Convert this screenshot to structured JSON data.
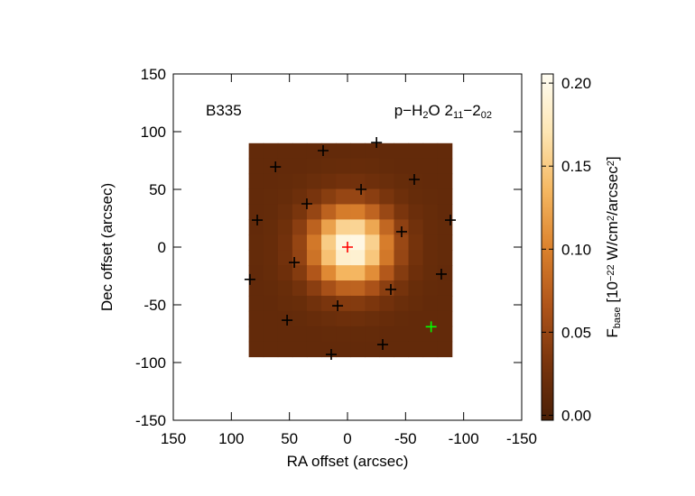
{
  "chart_data": {
    "type": "heatmap",
    "x_label": "RA offset (arcsec)",
    "y_label": "Dec offset (arcsec)",
    "xlim": [
      150,
      -150
    ],
    "ylim": [
      -150,
      150
    ],
    "xticks": [
      150,
      100,
      50,
      0,
      -50,
      -100,
      -150
    ],
    "yticks": [
      150,
      100,
      50,
      0,
      -50,
      -100,
      -150
    ],
    "annotations": [
      {
        "parts": [
          {
            "text": "B335"
          }
        ]
      },
      {
        "parts": [
          {
            "text": "p−H"
          },
          {
            "text": "2",
            "sub": true
          },
          {
            "text": "O 2"
          },
          {
            "text": "11",
            "sub": true
          },
          {
            "text": "−2"
          },
          {
            "text": "02",
            "sub": true
          }
        ]
      }
    ],
    "image_extent_x": [
      85,
      -90
    ],
    "image_extent_y": [
      90,
      -95
    ],
    "z": [
      [
        0.015,
        0.015,
        0.015,
        0.015,
        0.015,
        0.015,
        0.015,
        0.015,
        0.015,
        0.015,
        0.015,
        0.015,
        0.015,
        0.015
      ],
      [
        0.015,
        0.015,
        0.015,
        0.015,
        0.016,
        0.017,
        0.018,
        0.018,
        0.017,
        0.016,
        0.015,
        0.015,
        0.015,
        0.015
      ],
      [
        0.015,
        0.015,
        0.016,
        0.017,
        0.02,
        0.023,
        0.026,
        0.026,
        0.023,
        0.02,
        0.017,
        0.016,
        0.015,
        0.015
      ],
      [
        0.015,
        0.016,
        0.017,
        0.022,
        0.03,
        0.041,
        0.05,
        0.05,
        0.042,
        0.031,
        0.022,
        0.017,
        0.016,
        0.015
      ],
      [
        0.015,
        0.016,
        0.02,
        0.031,
        0.05,
        0.076,
        0.096,
        0.097,
        0.078,
        0.052,
        0.032,
        0.021,
        0.017,
        0.015
      ],
      [
        0.015,
        0.017,
        0.024,
        0.042,
        0.076,
        0.121,
        0.156,
        0.157,
        0.125,
        0.08,
        0.044,
        0.025,
        0.018,
        0.016
      ],
      [
        0.016,
        0.018,
        0.026,
        0.049,
        0.093,
        0.151,
        0.195,
        0.197,
        0.155,
        0.097,
        0.052,
        0.028,
        0.018,
        0.016
      ],
      [
        0.016,
        0.018,
        0.026,
        0.047,
        0.089,
        0.143,
        0.185,
        0.187,
        0.147,
        0.093,
        0.05,
        0.027,
        0.018,
        0.016
      ],
      [
        0.015,
        0.017,
        0.023,
        0.038,
        0.067,
        0.105,
        0.134,
        0.135,
        0.108,
        0.069,
        0.039,
        0.023,
        0.017,
        0.015
      ],
      [
        0.015,
        0.016,
        0.019,
        0.027,
        0.042,
        0.061,
        0.076,
        0.077,
        0.063,
        0.043,
        0.028,
        0.019,
        0.016,
        0.015
      ],
      [
        0.015,
        0.015,
        0.017,
        0.019,
        0.025,
        0.032,
        0.038,
        0.038,
        0.033,
        0.026,
        0.02,
        0.017,
        0.015,
        0.015
      ],
      [
        0.015,
        0.015,
        0.015,
        0.016,
        0.018,
        0.02,
        0.022,
        0.022,
        0.02,
        0.018,
        0.016,
        0.015,
        0.015,
        0.015
      ],
      [
        0.015,
        0.015,
        0.015,
        0.015,
        0.015,
        0.016,
        0.016,
        0.016,
        0.016,
        0.015,
        0.015,
        0.015,
        0.015,
        0.015
      ],
      [
        0.015,
        0.015,
        0.015,
        0.015,
        0.015,
        0.015,
        0.015,
        0.015,
        0.015,
        0.015,
        0.015,
        0.015,
        0.015,
        0.015
      ]
    ],
    "colormap": [
      "#4a1f06",
      "#7a350d",
      "#b0551a",
      "#dc832e",
      "#f5b862",
      "#fde6b4",
      "#fffdf2"
    ],
    "zlim": [
      -0.003,
      0.2055
    ],
    "zticks": [
      {
        "value": 0,
        "label": "0.00"
      },
      {
        "value": 0.05,
        "label": "0.05"
      },
      {
        "value": 0.1,
        "label": "0.10"
      },
      {
        "value": 0.15,
        "label": "0.15"
      },
      {
        "value": 0.2,
        "label": "0.20"
      }
    ],
    "colorbar_label": [
      {
        "text": "F"
      },
      {
        "text": "base",
        "sub": true
      },
      {
        "text": " [10"
      },
      {
        "text": "−22",
        "sup": true
      },
      {
        "text": " W/cm"
      },
      {
        "text": "2",
        "sup": true
      },
      {
        "text": "/arcsec"
      },
      {
        "text": "2",
        "sup": true
      },
      {
        "text": "]"
      }
    ],
    "points": [
      {
        "color": "#000000",
        "x": [
          -25,
          21,
          62,
          -57.5,
          -11.7,
          35,
          77.7,
          -88.6,
          -46.6,
          45.8,
          -37.3,
          -80.8,
          84,
          8.5,
          52,
          -30.3,
          14
        ],
        "y": [
          90.6,
          83.6,
          69.5,
          58.6,
          50,
          37.5,
          23.4,
          23.4,
          13.3,
          -13.3,
          -36.7,
          -23.4,
          -28,
          -50.8,
          -63.3,
          -84.4,
          -93
        ]
      },
      {
        "color": "#ff0000",
        "x": [
          0
        ],
        "y": [
          0
        ]
      },
      {
        "color": "#00ff00",
        "x": [
          -72
        ],
        "y": [
          -69
        ]
      }
    ]
  }
}
